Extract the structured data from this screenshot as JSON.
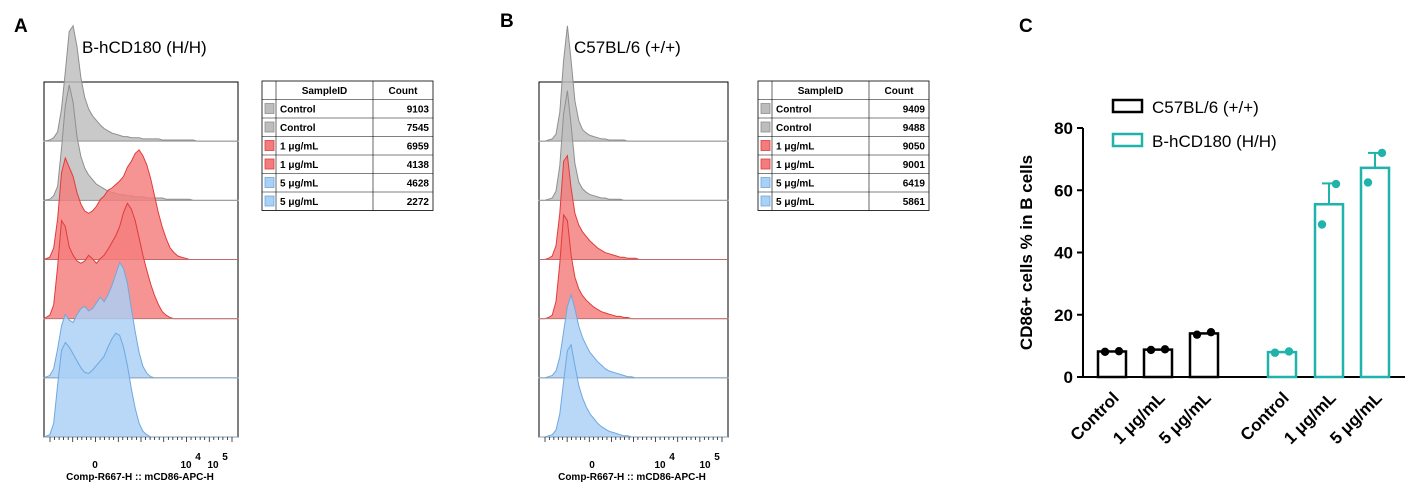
{
  "panels": [
    {
      "label": "A",
      "title": "B-hCD180 (H/H)",
      "x_axis_label": "Comp-R667-H :: mCD86-APC-H",
      "x_tick_labels": [
        "0",
        "10",
        "4",
        "10",
        "5"
      ],
      "table": {
        "headers": [
          "SampleID",
          "Count"
        ],
        "rows": [
          {
            "sample": "Control",
            "count": "9103",
            "color": "#bdbdbd"
          },
          {
            "sample": "Control",
            "count": "7545",
            "color": "#bdbdbd"
          },
          {
            "sample": "1 μg/mL",
            "count": "6959",
            "color": "#f47c7c"
          },
          {
            "sample": "1 μg/mL",
            "count": "4138",
            "color": "#f47c7c"
          },
          {
            "sample": "5 μg/mL",
            "count": "4628",
            "color": "#a9d0f5"
          },
          {
            "sample": "5 μg/mL",
            "count": "2272",
            "color": "#a9d0f5"
          }
        ]
      }
    },
    {
      "label": "B",
      "title": "C57BL/6 (+/+)",
      "x_axis_label": "Comp-R667-H :: mCD86-APC-H",
      "x_tick_labels": [
        "0",
        "10",
        "4",
        "10",
        "5"
      ],
      "table": {
        "headers": [
          "SampleID",
          "Count"
        ],
        "rows": [
          {
            "sample": "Control",
            "count": "9409",
            "color": "#bdbdbd"
          },
          {
            "sample": "Control",
            "count": "9488",
            "color": "#bdbdbd"
          },
          {
            "sample": "1 μg/mL",
            "count": "9050",
            "color": "#f47c7c"
          },
          {
            "sample": "1 μg/mL",
            "count": "9001",
            "color": "#f47c7c"
          },
          {
            "sample": "5 μg/mL",
            "count": "6419",
            "color": "#a9d0f5"
          },
          {
            "sample": "5 μg/mL",
            "count": "5861",
            "color": "#a9d0f5"
          }
        ]
      }
    }
  ],
  "chart_data": [
    {
      "panel": "A",
      "type": "area",
      "title": "B-hCD180 (H/H)",
      "xlabel": "Comp-R667-H :: mCD86-APC-H",
      "x_scale": "biexponential",
      "x_tick_labels": [
        "0",
        "10^4",
        "10^5"
      ],
      "x": [
        0,
        0.03,
        0.05,
        0.07,
        0.09,
        0.11,
        0.13,
        0.15,
        0.17,
        0.19,
        0.21,
        0.23,
        0.25,
        0.27,
        0.29,
        0.31,
        0.33,
        0.35,
        0.37,
        0.39,
        0.41,
        0.43,
        0.45,
        0.47,
        0.49,
        0.51,
        0.53,
        0.55,
        0.57,
        0.59,
        0.61,
        0.63,
        0.65,
        0.67,
        0.69,
        0.71,
        0.73,
        0.75,
        0.77,
        0.79,
        0.81,
        0.83,
        0.85,
        0.87,
        0.89,
        0.91,
        0.93,
        0.95,
        0.97,
        1.0
      ],
      "series": [
        {
          "name": "Control",
          "color": "#bdbdbd",
          "values": [
            0,
            0.01,
            0.03,
            0.08,
            0.28,
            0.6,
            0.95,
            1.0,
            0.82,
            0.55,
            0.38,
            0.28,
            0.22,
            0.18,
            0.14,
            0.11,
            0.09,
            0.07,
            0.06,
            0.05,
            0.04,
            0.04,
            0.03,
            0.03,
            0.03,
            0.02,
            0.02,
            0.02,
            0.02,
            0.02,
            0.01,
            0.01,
            0.01,
            0.01,
            0.01,
            0.01,
            0.01,
            0.01,
            0.01,
            0.0,
            0.0,
            0.0,
            0.0,
            0.0,
            0.0,
            0.0,
            0.0,
            0.0,
            0.0,
            0.0
          ]
        },
        {
          "name": "Control",
          "color": "#bdbdbd",
          "values": [
            0,
            0.01,
            0.04,
            0.12,
            0.45,
            0.82,
            1.0,
            0.85,
            0.55,
            0.38,
            0.28,
            0.22,
            0.18,
            0.14,
            0.12,
            0.1,
            0.08,
            0.07,
            0.06,
            0.05,
            0.05,
            0.04,
            0.04,
            0.03,
            0.03,
            0.03,
            0.02,
            0.02,
            0.02,
            0.02,
            0.02,
            0.01,
            0.01,
            0.01,
            0.01,
            0.01,
            0.01,
            0.01,
            0.0,
            0.0,
            0.0,
            0.0,
            0.0,
            0.0,
            0.0,
            0.0,
            0.0,
            0.0,
            0.0,
            0.0
          ]
        },
        {
          "name": "1 μg/mL",
          "color": "#f47c7c",
          "values": [
            0,
            0.02,
            0.1,
            0.35,
            0.75,
            0.88,
            0.8,
            0.72,
            0.58,
            0.48,
            0.42,
            0.4,
            0.42,
            0.46,
            0.52,
            0.55,
            0.6,
            0.62,
            0.65,
            0.68,
            0.72,
            0.8,
            0.85,
            0.92,
            0.95,
            0.9,
            0.82,
            0.7,
            0.55,
            0.4,
            0.28,
            0.18,
            0.1,
            0.06,
            0.03,
            0.02,
            0.01,
            0.0,
            0.0,
            0.0,
            0.0,
            0.0,
            0.0,
            0.0,
            0.0,
            0.0,
            0.0,
            0.0,
            0.0,
            0.0
          ]
        },
        {
          "name": "1 μg/mL",
          "color": "#f47c7c",
          "values": [
            0,
            0.03,
            0.12,
            0.45,
            0.85,
            0.8,
            0.62,
            0.55,
            0.5,
            0.48,
            0.5,
            0.55,
            0.52,
            0.48,
            0.52,
            0.55,
            0.6,
            0.66,
            0.72,
            0.8,
            0.92,
            1.0,
            0.95,
            0.85,
            0.7,
            0.55,
            0.42,
            0.3,
            0.2,
            0.12,
            0.06,
            0.03,
            0.01,
            0.0,
            0.0,
            0.0,
            0.0,
            0.0,
            0.0,
            0.0,
            0.0,
            0.0,
            0.0,
            0.0,
            0.0,
            0.0,
            0.0,
            0.0,
            0.0,
            0.0
          ]
        },
        {
          "name": "5 μg/mL",
          "color": "#a9d0f5",
          "values": [
            0,
            0.02,
            0.08,
            0.25,
            0.45,
            0.55,
            0.5,
            0.48,
            0.55,
            0.6,
            0.62,
            0.58,
            0.6,
            0.65,
            0.7,
            0.66,
            0.72,
            0.8,
            0.9,
            1.0,
            0.95,
            0.82,
            0.6,
            0.4,
            0.22,
            0.1,
            0.04,
            0.01,
            0.0,
            0.0,
            0.0,
            0.0,
            0.0,
            0.0,
            0.0,
            0.0,
            0.0,
            0.0,
            0.0,
            0.0,
            0.0,
            0.0,
            0.0,
            0.0,
            0.0,
            0.0,
            0.0,
            0.0,
            0.0,
            0.0
          ]
        },
        {
          "name": "5 μg/mL",
          "color": "#a9d0f5",
          "values": [
            0,
            0.02,
            0.12,
            0.45,
            0.75,
            0.82,
            0.78,
            0.72,
            0.66,
            0.6,
            0.56,
            0.55,
            0.58,
            0.62,
            0.66,
            0.7,
            0.78,
            0.85,
            0.9,
            0.88,
            0.78,
            0.62,
            0.42,
            0.25,
            0.12,
            0.05,
            0.02,
            0.0,
            0.0,
            0.0,
            0.0,
            0.0,
            0.0,
            0.0,
            0.0,
            0.0,
            0.0,
            0.0,
            0.0,
            0.0,
            0.0,
            0.0,
            0.0,
            0.0,
            0.0,
            0.0,
            0.0,
            0.0,
            0.0,
            0.0
          ]
        }
      ]
    },
    {
      "panel": "B",
      "type": "area",
      "title": "C57BL/6 (+/+)",
      "xlabel": "Comp-R667-H :: mCD86-APC-H",
      "x_scale": "biexponential",
      "x_tick_labels": [
        "0",
        "10^4",
        "10^5"
      ],
      "x": [
        0,
        0.03,
        0.05,
        0.07,
        0.09,
        0.11,
        0.13,
        0.15,
        0.17,
        0.19,
        0.21,
        0.23,
        0.25,
        0.27,
        0.29,
        0.31,
        0.33,
        0.35,
        0.37,
        0.39,
        0.41,
        0.43,
        0.45,
        0.47,
        0.49,
        0.51,
        0.53,
        0.55,
        0.57,
        0.59,
        0.61,
        0.63,
        0.65,
        0.67,
        0.69,
        0.71,
        0.73,
        0.75,
        0.77,
        0.79,
        0.81,
        0.83,
        0.85,
        0.87,
        0.89,
        0.91,
        0.93,
        0.95,
        0.97,
        1.0
      ],
      "series": [
        {
          "name": "Control",
          "color": "#bdbdbd",
          "values": [
            0,
            0.0,
            0.01,
            0.02,
            0.06,
            0.25,
            0.7,
            1.0,
            0.7,
            0.35,
            0.18,
            0.1,
            0.07,
            0.05,
            0.04,
            0.03,
            0.02,
            0.02,
            0.01,
            0.01,
            0.01,
            0.01,
            0.01,
            0.0,
            0.0,
            0.0,
            0.0,
            0.0,
            0.0,
            0.0,
            0.0,
            0.0,
            0.0,
            0.0,
            0.0,
            0.0,
            0.0,
            0.0,
            0.0,
            0.0,
            0.0,
            0.0,
            0.0,
            0.0,
            0.0,
            0.0,
            0.0,
            0.0,
            0.0,
            0.0
          ]
        },
        {
          "name": "Control",
          "color": "#bdbdbd",
          "values": [
            0,
            0.0,
            0.01,
            0.02,
            0.08,
            0.3,
            0.75,
            0.95,
            0.65,
            0.32,
            0.16,
            0.1,
            0.07,
            0.05,
            0.04,
            0.03,
            0.02,
            0.02,
            0.01,
            0.01,
            0.01,
            0.01,
            0.0,
            0.0,
            0.0,
            0.0,
            0.0,
            0.0,
            0.0,
            0.0,
            0.0,
            0.0,
            0.0,
            0.0,
            0.0,
            0.0,
            0.0,
            0.0,
            0.0,
            0.0,
            0.0,
            0.0,
            0.0,
            0.0,
            0.0,
            0.0,
            0.0,
            0.0,
            0.0,
            0.0
          ]
        },
        {
          "name": "1 μg/mL",
          "color": "#f47c7c",
          "values": [
            0,
            0.0,
            0.01,
            0.03,
            0.12,
            0.4,
            0.85,
            0.9,
            0.62,
            0.4,
            0.3,
            0.24,
            0.2,
            0.16,
            0.13,
            0.1,
            0.08,
            0.06,
            0.05,
            0.04,
            0.03,
            0.02,
            0.02,
            0.01,
            0.01,
            0.01,
            0.0,
            0.0,
            0.0,
            0.0,
            0.0,
            0.0,
            0.0,
            0.0,
            0.0,
            0.0,
            0.0,
            0.0,
            0.0,
            0.0,
            0.0,
            0.0,
            0.0,
            0.0,
            0.0,
            0.0,
            0.0,
            0.0,
            0.0,
            0.0
          ]
        },
        {
          "name": "1 μg/mL",
          "color": "#f47c7c",
          "values": [
            0,
            0.0,
            0.01,
            0.03,
            0.15,
            0.48,
            0.9,
            0.85,
            0.55,
            0.36,
            0.26,
            0.2,
            0.16,
            0.13,
            0.1,
            0.08,
            0.06,
            0.05,
            0.04,
            0.03,
            0.02,
            0.02,
            0.01,
            0.01,
            0.0,
            0.0,
            0.0,
            0.0,
            0.0,
            0.0,
            0.0,
            0.0,
            0.0,
            0.0,
            0.0,
            0.0,
            0.0,
            0.0,
            0.0,
            0.0,
            0.0,
            0.0,
            0.0,
            0.0,
            0.0,
            0.0,
            0.0,
            0.0,
            0.0,
            0.0
          ]
        },
        {
          "name": "5 μg/mL",
          "color": "#a9d0f5",
          "values": [
            0,
            0.0,
            0.01,
            0.02,
            0.06,
            0.18,
            0.4,
            0.62,
            0.72,
            0.6,
            0.45,
            0.35,
            0.28,
            0.22,
            0.18,
            0.14,
            0.11,
            0.08,
            0.06,
            0.05,
            0.04,
            0.03,
            0.02,
            0.01,
            0.01,
            0.0,
            0.0,
            0.0,
            0.0,
            0.0,
            0.0,
            0.0,
            0.0,
            0.0,
            0.0,
            0.0,
            0.0,
            0.0,
            0.0,
            0.0,
            0.0,
            0.0,
            0.0,
            0.0,
            0.0,
            0.0,
            0.0,
            0.0,
            0.0,
            0.0
          ]
        },
        {
          "name": "5 μg/mL",
          "color": "#a9d0f5",
          "values": [
            0,
            0.0,
            0.01,
            0.02,
            0.06,
            0.2,
            0.48,
            0.75,
            0.8,
            0.62,
            0.45,
            0.34,
            0.26,
            0.2,
            0.16,
            0.12,
            0.09,
            0.07,
            0.05,
            0.04,
            0.03,
            0.02,
            0.01,
            0.01,
            0.0,
            0.0,
            0.0,
            0.0,
            0.0,
            0.0,
            0.0,
            0.0,
            0.0,
            0.0,
            0.0,
            0.0,
            0.0,
            0.0,
            0.0,
            0.0,
            0.0,
            0.0,
            0.0,
            0.0,
            0.0,
            0.0,
            0.0,
            0.0,
            0.0,
            0.0
          ]
        }
      ]
    },
    {
      "panel": "C",
      "type": "bar",
      "ylabel": "CD86+ cells % in B cells",
      "ylim": [
        0,
        80
      ],
      "yticks": [
        0,
        20,
        40,
        60,
        80
      ],
      "categories": [
        "Control",
        "1 μg/mL",
        "5 μg/mL"
      ],
      "legend_position": "top-left",
      "series": [
        {
          "name": "C57BL/6 (+/+)",
          "color": "#000000",
          "values": [
            8.2,
            8.8,
            14.0
          ],
          "error": [
            0.2,
            0.3,
            0.4
          ],
          "points": [
            [
              8.1,
              8.3
            ],
            [
              8.7,
              8.9
            ],
            [
              13.6,
              14.4
            ]
          ]
        },
        {
          "name": "B-hCD180 (H/H)",
          "color": "#1fb3ab",
          "values": [
            8.0,
            55.5,
            67.2
          ],
          "error": [
            0.3,
            6.7,
            4.8
          ],
          "points": [
            [
              7.8,
              8.2
            ],
            [
              49.0,
              62.0
            ],
            [
              62.5,
              72.0
            ]
          ]
        }
      ]
    }
  ]
}
